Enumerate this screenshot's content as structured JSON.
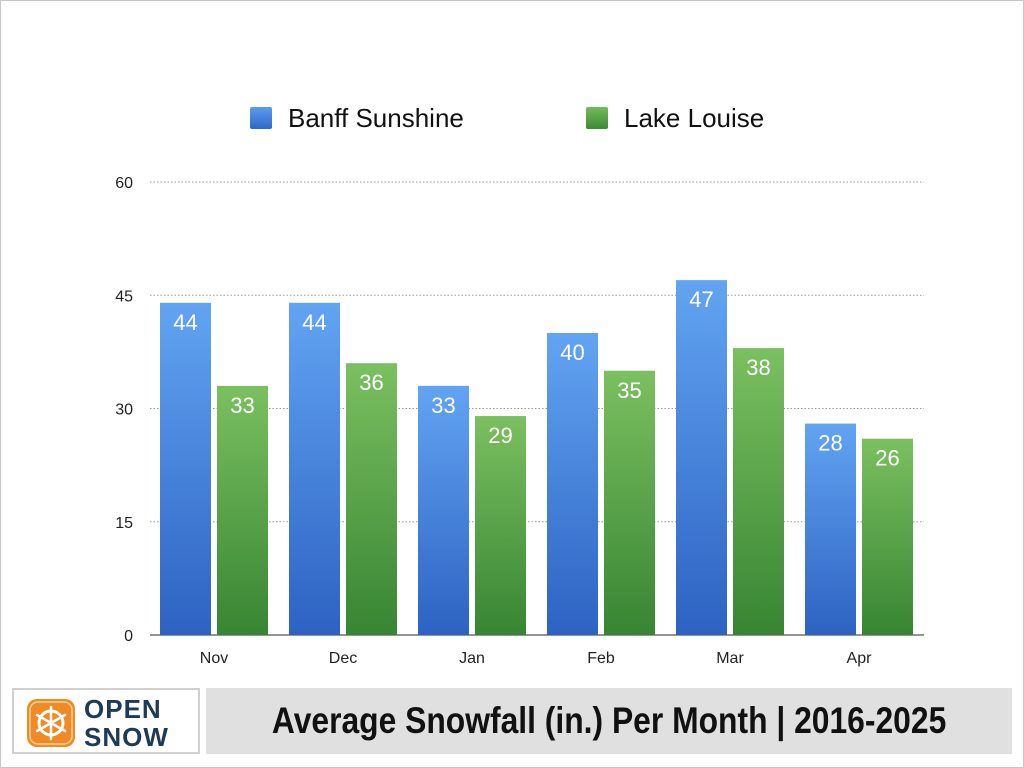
{
  "chart_data": {
    "type": "bar",
    "title": "Average Snowfall (in.) Per Month | 2016-2025",
    "categories": [
      "Nov",
      "Dec",
      "Jan",
      "Feb",
      "Mar",
      "Apr"
    ],
    "series": [
      {
        "name": "Banff Sunshine",
        "values": [
          44,
          44,
          33,
          40,
          47,
          28
        ],
        "color": "#3f7fde"
      },
      {
        "name": "Lake Louise",
        "values": [
          33,
          36,
          29,
          35,
          38,
          26
        ],
        "color": "#52a447"
      }
    ],
    "ylim": [
      0,
      60
    ],
    "yticks": [
      0,
      15,
      30,
      45,
      60
    ],
    "data_labels": true,
    "grid": "horizontal dotted",
    "legend_position": "top"
  },
  "branding": {
    "logo_line1": "OPEN",
    "logo_line2": "SNOW",
    "logo_color": "#f08a24"
  }
}
